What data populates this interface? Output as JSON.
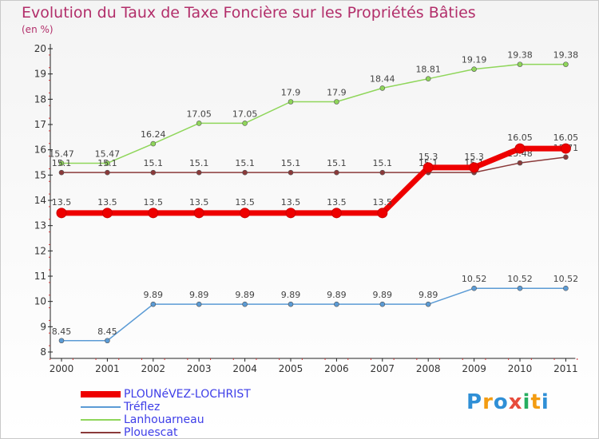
{
  "chart_data": {
    "type": "line",
    "title": "Evolution du Taux de Taxe Foncière sur les Propriétés Bâties",
    "ylabel": "(en %)",
    "xlabel": "",
    "ylim": [
      8,
      20
    ],
    "yticks": [
      8,
      9,
      10,
      11,
      12,
      13,
      14,
      15,
      16,
      17,
      18,
      19,
      20
    ],
    "categories": [
      "2000",
      "2001",
      "2002",
      "2003",
      "2004",
      "2005",
      "2006",
      "2007",
      "2008",
      "2009",
      "2010",
      "2011"
    ],
    "series": [
      {
        "name": "PLOUNéVEZ-LOCHRIST",
        "color": "#ee0000",
        "thick": true,
        "values": [
          13.5,
          13.5,
          13.5,
          13.5,
          13.5,
          13.5,
          13.5,
          13.5,
          15.3,
          15.3,
          16.05,
          16.05
        ],
        "labels": [
          "13.5",
          "13.5",
          "13.5",
          "13.5",
          "13.5",
          "13.5",
          "13.5",
          "13.5",
          "15.3",
          "15.3",
          "16.05",
          "16.05"
        ]
      },
      {
        "name": "Tréflez",
        "color": "#5b9bd5",
        "thick": false,
        "values": [
          8.45,
          8.45,
          9.89,
          9.89,
          9.89,
          9.89,
          9.89,
          9.89,
          9.89,
          10.52,
          10.52,
          10.52
        ],
        "labels": [
          "8.45",
          "8.45",
          "9.89",
          "9.89",
          "9.89",
          "9.89",
          "9.89",
          "9.89",
          "9.89",
          "10.52",
          "10.52",
          "10.52"
        ]
      },
      {
        "name": "Lanhouarneau",
        "color": "#8fd65a",
        "thick": false,
        "values": [
          15.47,
          15.47,
          16.24,
          17.05,
          17.05,
          17.9,
          17.9,
          18.44,
          18.81,
          19.19,
          19.38,
          19.38
        ],
        "labels": [
          "15.47",
          "15.47",
          "16.24",
          "17.05",
          "17.05",
          "17.9",
          "17.9",
          "18.44",
          "18.81",
          "19.19",
          "19.38",
          "19.38"
        ]
      },
      {
        "name": "Plouescat",
        "color": "#8b3a3a",
        "thick": false,
        "values": [
          15.1,
          15.1,
          15.1,
          15.1,
          15.1,
          15.1,
          15.1,
          15.1,
          15.1,
          15.1,
          15.48,
          15.71
        ],
        "labels": [
          "15.1",
          "15.1",
          "15.1",
          "15.1",
          "15.1",
          "15.1",
          "15.1",
          "15.1",
          "15.1",
          "15.1",
          "15.48",
          "15.71"
        ]
      }
    ]
  },
  "logo": {
    "letters": [
      "P",
      "r",
      "o",
      "x",
      "i",
      "t",
      "i"
    ],
    "colors": [
      "#2f8fd6",
      "#f39c12",
      "#2f8fd6",
      "#e74c3c",
      "#27ae60",
      "#f39c12",
      "#2f8fd6"
    ]
  }
}
